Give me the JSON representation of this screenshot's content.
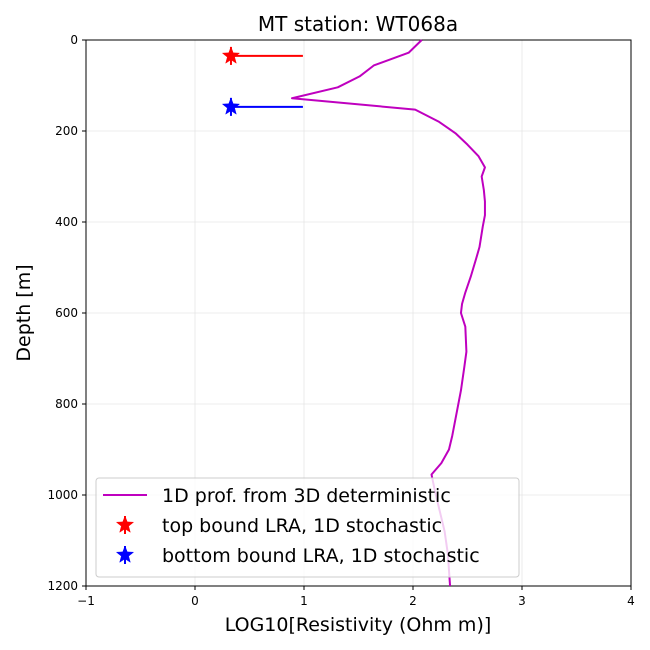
{
  "chart_data": {
    "type": "line",
    "title": "MT station: WT068a",
    "xlabel": "LOG10[Resistivity (Ohm m)]",
    "ylabel": "Depth [m]",
    "xlim": [
      -1,
      4
    ],
    "ylim": [
      1200,
      0
    ],
    "y_inverted": true,
    "grid": true,
    "legend_position": "lower-left",
    "x_ticks": [
      "−1",
      "0",
      "1",
      "2",
      "3",
      "4"
    ],
    "y_ticks": [
      "0",
      "200",
      "400",
      "600",
      "800",
      "1000",
      "1200"
    ],
    "series": [
      {
        "name": "1D prof. from 3D deterministic",
        "kind": "line",
        "color": "#bf00bf",
        "x": [
          2.08,
          1.96,
          1.64,
          1.51,
          1.31,
          0.89,
          2.02,
          2.24,
          2.39,
          2.5,
          2.6,
          2.66,
          2.63,
          2.65,
          2.66,
          2.66,
          2.64,
          2.61,
          2.58,
          2.53,
          2.48,
          2.45,
          2.44,
          2.48,
          2.49,
          2.47,
          2.44,
          2.4,
          2.36,
          2.33,
          2.26,
          2.17,
          2.2,
          2.25,
          2.29,
          2.32,
          2.34
        ],
        "y": [
          0,
          28,
          56,
          80,
          104,
          128,
          153,
          180,
          205,
          230,
          255,
          280,
          300,
          330,
          355,
          385,
          410,
          455,
          480,
          520,
          555,
          580,
          600,
          630,
          685,
          720,
          770,
          820,
          870,
          900,
          930,
          955,
          990,
          1040,
          1080,
          1130,
          1200
        ]
      },
      {
        "name": "top bound LRA, 1D stochastic",
        "kind": "point_with_xerror",
        "color": "#ff0000",
        "marker": "star",
        "x": 0.33,
        "y": 35,
        "xerr_low": 0.0,
        "xerr_high": 0.66
      },
      {
        "name": "bottom bound LRA, 1D stochastic",
        "kind": "point_with_xerror",
        "color": "#0000ff",
        "marker": "star",
        "x": 0.33,
        "y": 147,
        "xerr_low": 0.0,
        "xerr_high": 0.66
      }
    ]
  }
}
